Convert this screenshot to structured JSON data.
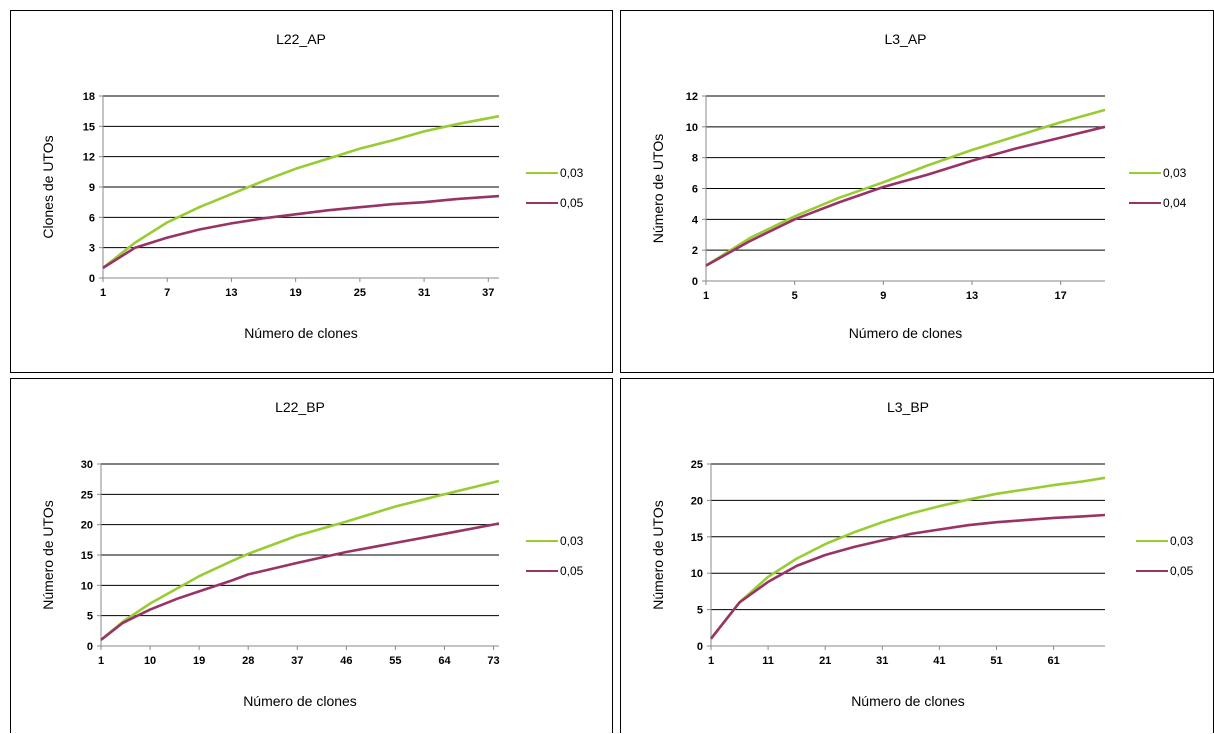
{
  "chart_data": [
    {
      "type": "line",
      "title": "L22_AP",
      "xlabel": "Número de clones",
      "ylabel": "Clones de UTOs",
      "xlim": [
        1,
        38
      ],
      "ylim": [
        0,
        18
      ],
      "yticks": [
        0,
        3,
        6,
        9,
        12,
        15,
        18
      ],
      "xtick_labels": [
        "1",
        "7",
        "13",
        "19",
        "25",
        "31",
        "37"
      ],
      "grid": "horizontal",
      "legend": "right",
      "series": [
        {
          "name": "0,03",
          "color": "#99cc33",
          "x": [
            1,
            4,
            7,
            10,
            13,
            16,
            19,
            22,
            25,
            28,
            31,
            34,
            38
          ],
          "y": [
            1,
            3.5,
            5.5,
            7,
            8.3,
            9.6,
            10.8,
            11.8,
            12.8,
            13.6,
            14.5,
            15.2,
            16
          ]
        },
        {
          "name": "0,05",
          "color": "#993366",
          "x": [
            1,
            4,
            7,
            10,
            13,
            16,
            19,
            22,
            25,
            28,
            31,
            34,
            38
          ],
          "y": [
            1,
            3,
            4,
            4.8,
            5.4,
            5.9,
            6.3,
            6.7,
            7,
            7.3,
            7.5,
            7.8,
            8.1
          ]
        }
      ]
    },
    {
      "type": "line",
      "title": "L3_AP",
      "xlabel": "Número de clones",
      "ylabel": "Número de UTOs",
      "xlim": [
        1,
        19
      ],
      "ylim": [
        0,
        12
      ],
      "yticks": [
        0,
        2,
        4,
        6,
        8,
        10,
        12
      ],
      "xtick_labels": [
        "1",
        "5",
        "9",
        "13",
        "17"
      ],
      "grid": "horizontal",
      "legend": "right",
      "series": [
        {
          "name": "0,03",
          "color": "#99cc33",
          "x": [
            1,
            3,
            5,
            7,
            9,
            11,
            13,
            15,
            17,
            19
          ],
          "y": [
            1,
            2.8,
            4.2,
            5.4,
            6.4,
            7.5,
            8.5,
            9.4,
            10.3,
            11.1
          ]
        },
        {
          "name": "0,04",
          "color": "#993366",
          "x": [
            1,
            3,
            5,
            7,
            9,
            11,
            13,
            15,
            17,
            19
          ],
          "y": [
            1,
            2.6,
            4,
            5.1,
            6.1,
            6.9,
            7.8,
            8.6,
            9.3,
            10
          ]
        }
      ]
    },
    {
      "type": "line",
      "title": "L22_BP",
      "xlabel": "Número de clones",
      "ylabel": "Número de UTOs",
      "xlim": [
        1,
        74
      ],
      "ylim": [
        0,
        30
      ],
      "yticks": [
        0,
        5,
        10,
        15,
        20,
        25,
        30
      ],
      "xtick_labels": [
        "1",
        "10",
        "19",
        "28",
        "37",
        "46",
        "55",
        "64",
        "73"
      ],
      "grid": "horizontal",
      "legend": "right",
      "series": [
        {
          "name": "0,03",
          "color": "#99cc33",
          "x": [
            1,
            5,
            10,
            15,
            19,
            25,
            28,
            37,
            46,
            55,
            64,
            74
          ],
          "y": [
            1,
            4,
            7,
            9.5,
            11.5,
            14,
            15.2,
            18.2,
            20.5,
            23,
            25,
            27.2
          ]
        },
        {
          "name": "0,05",
          "color": "#993366",
          "x": [
            1,
            5,
            10,
            15,
            19,
            25,
            28,
            37,
            46,
            55,
            64,
            74
          ],
          "y": [
            1,
            3.8,
            6,
            7.8,
            9,
            10.8,
            11.8,
            13.7,
            15.5,
            17,
            18.5,
            20.2
          ]
        }
      ]
    },
    {
      "type": "line",
      "title": "L3_BP",
      "xlabel": "Número de clones",
      "ylabel": "Número de UTOs",
      "xlim": [
        1,
        70
      ],
      "ylim": [
        0,
        25
      ],
      "yticks": [
        0,
        5,
        10,
        15,
        20,
        25
      ],
      "xtick_labels": [
        "1",
        "11",
        "21",
        "31",
        "41",
        "51",
        "61"
      ],
      "grid": "horizontal",
      "legend": "right",
      "series": [
        {
          "name": "0,03",
          "color": "#99cc33",
          "x": [
            1,
            6,
            11,
            16,
            21,
            26,
            31,
            36,
            41,
            46,
            51,
            56,
            61,
            66,
            70
          ],
          "y": [
            1,
            6,
            9.5,
            12,
            14,
            15.6,
            17,
            18.2,
            19.2,
            20.1,
            20.9,
            21.5,
            22.1,
            22.6,
            23.1
          ]
        },
        {
          "name": "0,05",
          "color": "#993366",
          "x": [
            1,
            6,
            11,
            16,
            21,
            26,
            31,
            36,
            41,
            46,
            51,
            56,
            61,
            66,
            70
          ],
          "y": [
            1,
            6,
            8.8,
            11,
            12.5,
            13.6,
            14.5,
            15.4,
            16,
            16.6,
            17,
            17.3,
            17.6,
            17.8,
            18
          ]
        }
      ]
    }
  ]
}
